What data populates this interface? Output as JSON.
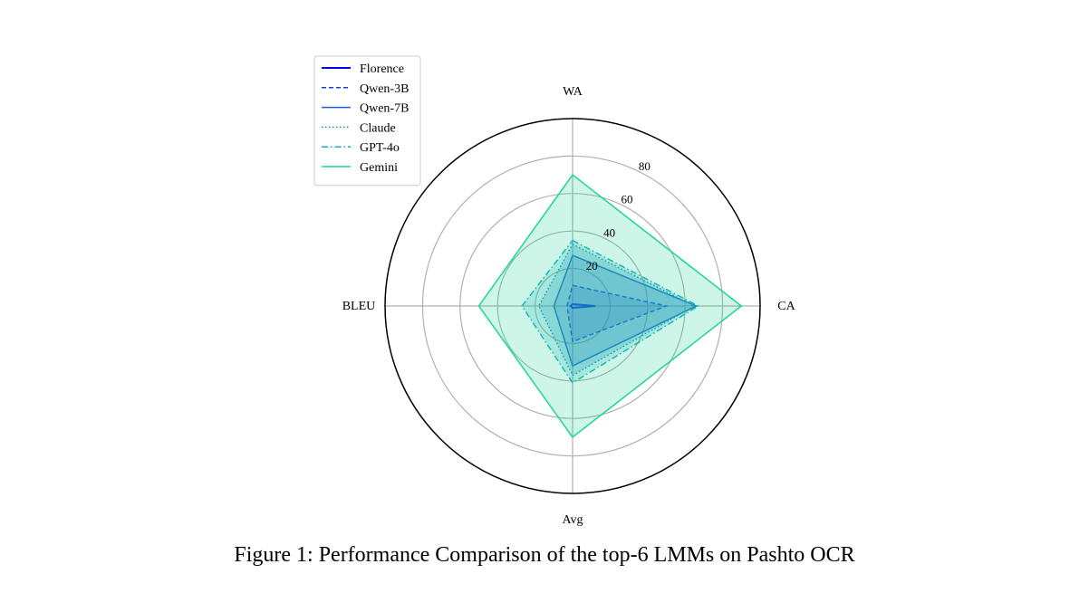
{
  "caption": "Figure 1: Performance Comparison of the top-6 LMMs on Pashto OCR",
  "chart_data": {
    "type": "radar",
    "axes": [
      "WA",
      "CA",
      "Avg",
      "BLEU"
    ],
    "rlim": [
      0,
      100
    ],
    "rticks": [
      20,
      40,
      60,
      80
    ],
    "grid": true,
    "legend_position": "upper-left",
    "series": [
      {
        "name": "Florence",
        "values": [
          1,
          12,
          1,
          1
        ],
        "color": "#0000ee",
        "dash": "solid",
        "width": 2,
        "fill": false
      },
      {
        "name": "Qwen-3B",
        "values": [
          11,
          50,
          19,
          3
        ],
        "color": "#1a3ee0",
        "dash": "dashed",
        "width": 1.5,
        "fill": true
      },
      {
        "name": "Qwen-7B",
        "values": [
          27,
          66,
          32,
          10
        ],
        "color": "#1f5fd0",
        "dash": "solid",
        "width": 1.5,
        "fill": true
      },
      {
        "name": "Claude",
        "values": [
          33,
          65,
          37,
          18
        ],
        "color": "#1b84c4",
        "dash": "dotted",
        "width": 1.5,
        "fill": true
      },
      {
        "name": "GPT-4o",
        "values": [
          35,
          67,
          41,
          27
        ],
        "color": "#17aebd",
        "dash": "dashdot",
        "width": 1.5,
        "fill": true
      },
      {
        "name": "Gemini",
        "values": [
          70,
          90,
          70,
          50
        ],
        "color": "#1ed597",
        "dash": "solid",
        "width": 1.5,
        "fill": true
      }
    ]
  }
}
